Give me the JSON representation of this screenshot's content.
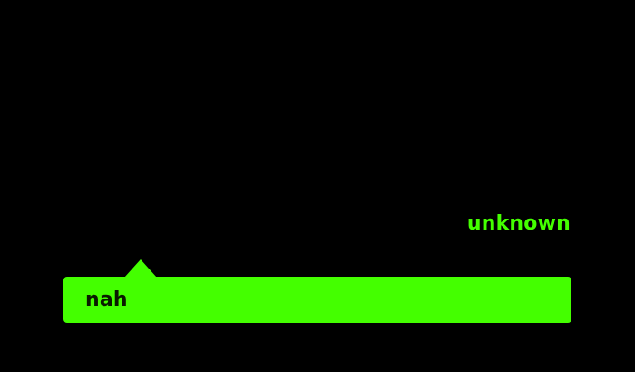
{
  "status": {
    "label": "unknown",
    "color": "#44ff00"
  },
  "message": {
    "text": "nah",
    "background": "#44ff00"
  }
}
